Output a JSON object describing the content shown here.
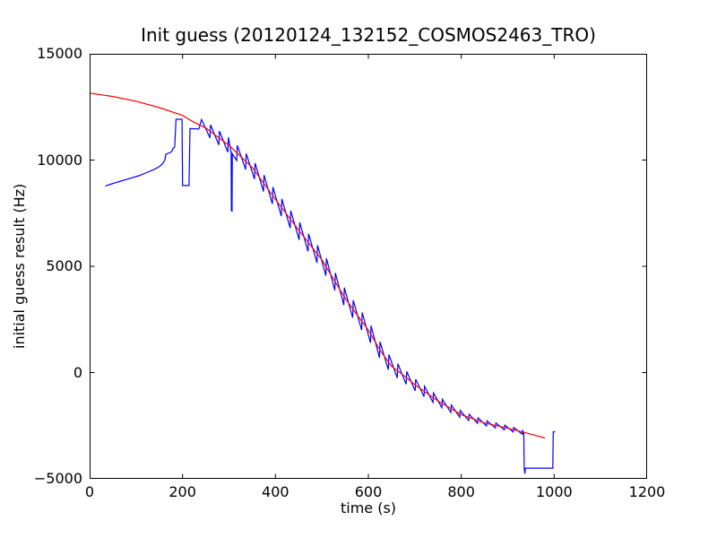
{
  "chart_data": {
    "type": "line",
    "title": "Init guess (20120124_132152_COSMOS2463_TRO)",
    "xlabel": "time (s)",
    "ylabel": "initial guess result (Hz)",
    "xlim": [
      0,
      1200
    ],
    "ylim": [
      -5000,
      15000
    ],
    "x_ticks": [
      0,
      200,
      400,
      600,
      800,
      1000,
      1200
    ],
    "x_tick_labels": [
      "0",
      "200",
      "400",
      "600",
      "800",
      "1000",
      "1200"
    ],
    "y_ticks": [
      15000,
      10000,
      5000,
      0,
      -5000
    ],
    "y_tick_labels": [
      "15000",
      "10000",
      "5000",
      "0",
      "−5000"
    ],
    "grid": false,
    "legend": "none",
    "axes_color": "#000000",
    "background_color": "#ffffff",
    "series": [
      {
        "name": "initial guess result trace",
        "color": "#0000ff",
        "description": "noisy blue measurement trace with sawtooth oscillation, two early dropouts and a dropout plateau near the end",
        "pre_points": [
          [
            34,
            8780
          ],
          [
            48,
            8880
          ],
          [
            67,
            9010
          ],
          [
            87,
            9140
          ],
          [
            106,
            9260
          ],
          [
            125,
            9430
          ],
          [
            139,
            9560
          ],
          [
            150,
            9690
          ],
          [
            158,
            9850
          ],
          [
            162,
            10020
          ],
          [
            164,
            10270
          ],
          [
            174,
            10360
          ],
          [
            177,
            10400
          ],
          [
            179,
            10530
          ],
          [
            183,
            10610
          ],
          [
            186,
            11920
          ],
          [
            199,
            11920
          ],
          [
            200,
            8800
          ],
          [
            214,
            8800
          ],
          [
            216,
            11480
          ],
          [
            235,
            11460
          ]
        ],
        "sawtooth": {
          "t_start": 241,
          "t_end": 934,
          "period": 19.2,
          "amplitude_profile": [
            [
              241,
              300
            ],
            [
              300,
              360
            ],
            [
              400,
              420
            ],
            [
              500,
              430
            ],
            [
              600,
              430
            ],
            [
              660,
              350
            ],
            [
              720,
              250
            ],
            [
              780,
              180
            ],
            [
              840,
              130
            ],
            [
              934,
              100
            ]
          ]
        },
        "dip_points": [
          [
            304.6,
            10350
          ],
          [
            305.2,
            7620
          ],
          [
            306.6,
            7600
          ],
          [
            307.2,
            10300
          ]
        ],
        "post_points": [
          [
            934.5,
            -2800
          ],
          [
            935.5,
            -4500
          ],
          [
            936.8,
            -4760
          ],
          [
            938,
            -4500
          ],
          [
            997,
            -4500
          ],
          [
            998,
            -2790
          ],
          [
            1002,
            -2785
          ]
        ]
      },
      {
        "name": "fit curve",
        "color": "#ff0000",
        "description": "smooth red fitted curve from 13150 Hz at t=0 down to -3080 Hz at t=980",
        "points": [
          [
            0,
            13150
          ],
          [
            50,
            12990
          ],
          [
            100,
            12770
          ],
          [
            150,
            12470
          ],
          [
            200,
            12100
          ],
          [
            222,
            11810
          ],
          [
            250,
            11510
          ],
          [
            300,
            10690
          ],
          [
            350,
            9650
          ],
          [
            400,
            8150
          ],
          [
            450,
            6700
          ],
          [
            475,
            6000
          ],
          [
            500,
            5300
          ],
          [
            525,
            4400
          ],
          [
            550,
            3500
          ],
          [
            575,
            2740
          ],
          [
            600,
            2000
          ],
          [
            625,
            1050
          ],
          [
            650,
            300
          ],
          [
            675,
            -120
          ],
          [
            700,
            -570
          ],
          [
            750,
            -1340
          ],
          [
            800,
            -1980
          ],
          [
            850,
            -2370
          ],
          [
            900,
            -2620
          ],
          [
            950,
            -2900
          ],
          [
            980,
            -3080
          ]
        ]
      }
    ]
  }
}
